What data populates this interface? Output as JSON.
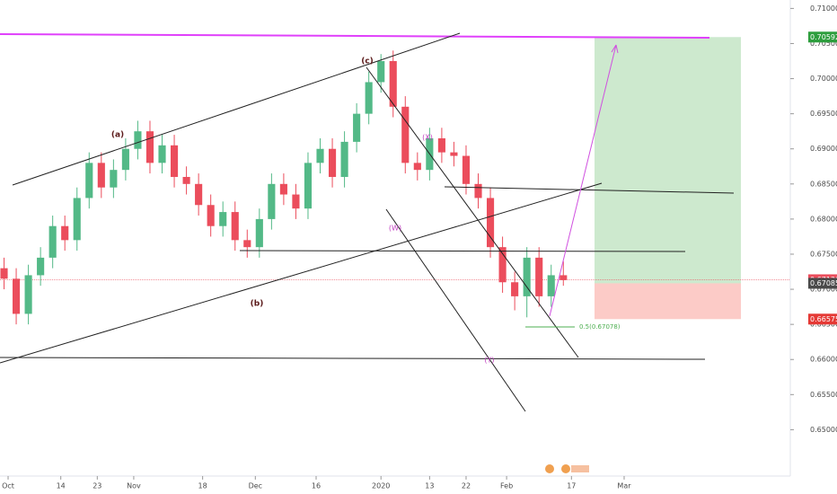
{
  "chart_data": {
    "type": "candlestick",
    "x": [
      0,
      3,
      6,
      9,
      12,
      15,
      18,
      21,
      24,
      27,
      30,
      33,
      36,
      39,
      42,
      45,
      48,
      51,
      54,
      57,
      60,
      63,
      66,
      69,
      72,
      75,
      78,
      81,
      84,
      87,
      90,
      93,
      96,
      99,
      102,
      105,
      108,
      111,
      114,
      117,
      120,
      123,
      126,
      129,
      132,
      135,
      138
    ],
    "open": [
      0.673,
      0.6715,
      0.6665,
      0.672,
      0.6745,
      0.679,
      0.677,
      0.683,
      0.688,
      0.6845,
      0.687,
      0.69,
      0.6925,
      0.688,
      0.6905,
      0.686,
      0.685,
      0.682,
      0.679,
      0.681,
      0.677,
      0.676,
      0.68,
      0.685,
      0.6835,
      0.6815,
      0.688,
      0.69,
      0.686,
      0.691,
      0.695,
      0.6995,
      0.7025,
      0.696,
      0.688,
      0.687,
      0.6915,
      0.6895,
      0.689,
      0.685,
      0.683,
      0.676,
      0.671,
      0.669,
      0.6745,
      0.669,
      0.672
    ],
    "high": [
      0.6745,
      0.673,
      0.6735,
      0.676,
      0.6805,
      0.6805,
      0.6845,
      0.6895,
      0.6895,
      0.6885,
      0.6915,
      0.694,
      0.694,
      0.692,
      0.692,
      0.6875,
      0.6865,
      0.6835,
      0.6825,
      0.6825,
      0.6785,
      0.6815,
      0.6865,
      0.6865,
      0.685,
      0.6895,
      0.6915,
      0.6915,
      0.6925,
      0.6965,
      0.701,
      0.7035,
      0.704,
      0.6975,
      0.6895,
      0.693,
      0.693,
      0.691,
      0.6905,
      0.6865,
      0.6845,
      0.6775,
      0.6725,
      0.676,
      0.676,
      0.6735,
      0.674
    ],
    "low": [
      0.67,
      0.665,
      0.665,
      0.6705,
      0.673,
      0.6755,
      0.6755,
      0.6815,
      0.683,
      0.683,
      0.6855,
      0.6885,
      0.6865,
      0.6865,
      0.6845,
      0.6835,
      0.6805,
      0.6775,
      0.6775,
      0.6755,
      0.6745,
      0.6745,
      0.6785,
      0.682,
      0.68,
      0.68,
      0.6865,
      0.6845,
      0.6845,
      0.6895,
      0.6935,
      0.698,
      0.6945,
      0.6865,
      0.6855,
      0.6855,
      0.688,
      0.6875,
      0.6835,
      0.6815,
      0.6745,
      0.6695,
      0.667,
      0.666,
      0.6675,
      0.6675,
      0.6705
    ],
    "close": [
      0.6715,
      0.6665,
      0.672,
      0.6745,
      0.679,
      0.677,
      0.683,
      0.688,
      0.6845,
      0.687,
      0.69,
      0.6925,
      0.688,
      0.6905,
      0.686,
      0.685,
      0.682,
      0.679,
      0.681,
      0.677,
      0.676,
      0.68,
      0.685,
      0.6835,
      0.6815,
      0.688,
      0.69,
      0.686,
      0.691,
      0.695,
      0.6995,
      0.7025,
      0.696,
      0.688,
      0.687,
      0.6915,
      0.6895,
      0.689,
      0.685,
      0.683,
      0.676,
      0.671,
      0.669,
      0.6745,
      0.669,
      0.672,
      0.6713
    ],
    "up_color": "#53b987",
    "down_color": "#eb4d5c",
    "xlim": [
      -1,
      194
    ],
    "xticks": [
      {
        "value": 1,
        "label": "Oct"
      },
      14,
      23,
      {
        "value": 32,
        "label": "Nov"
      },
      {
        "value": 49,
        "label": "18"
      },
      {
        "value": 62,
        "label": "Dec"
      },
      {
        "value": 77,
        "label": "16"
      },
      {
        "value": 93,
        "label": "2020"
      },
      {
        "value": 105,
        "label": "13"
      },
      {
        "value": 114,
        "label": "22"
      },
      {
        "value": 124,
        "label": "Feb"
      },
      {
        "value": 140,
        "label": "17"
      },
      {
        "value": 153,
        "label": "Mar"
      }
    ],
    "ylim": [
      0.6434,
      0.7112
    ],
    "yticks": [
      {
        "value": 0.71,
        "label": "0.71000"
      },
      {
        "value": 0.705,
        "label": "0.70500"
      },
      {
        "value": 0.7,
        "label": "0.70000"
      },
      {
        "value": 0.695,
        "label": "0.69500"
      },
      {
        "value": 0.69,
        "label": "0.69000"
      },
      {
        "value": 0.685,
        "label": "0.68500"
      },
      {
        "value": 0.68,
        "label": "0.68000"
      },
      {
        "value": 0.675,
        "label": "0.67500"
      },
      {
        "value": 0.67,
        "label": "0.67000"
      },
      {
        "value": 0.665,
        "label": "0.66500"
      },
      {
        "value": 0.66,
        "label": "0.66000"
      },
      {
        "value": 0.655,
        "label": "0.65500"
      },
      {
        "value": 0.65,
        "label": "0.65000"
      }
    ],
    "price_labels": [
      {
        "value": 0.70592,
        "label": "0.70592",
        "color": "#2e9e3e"
      },
      {
        "value": 0.67136,
        "label": "0.67136",
        "color": "#eb4d5c"
      },
      {
        "value": 0.67085,
        "label": "0.67085",
        "color": "#4a4a4a"
      },
      {
        "value": 0.66575,
        "label": "0.66575",
        "color": "#e53935"
      }
    ],
    "annotations": [
      "(a)",
      "(b)",
      "(c)",
      "(W)",
      "(X)",
      "(Y)",
      "0.5(0.67078)"
    ]
  }
}
